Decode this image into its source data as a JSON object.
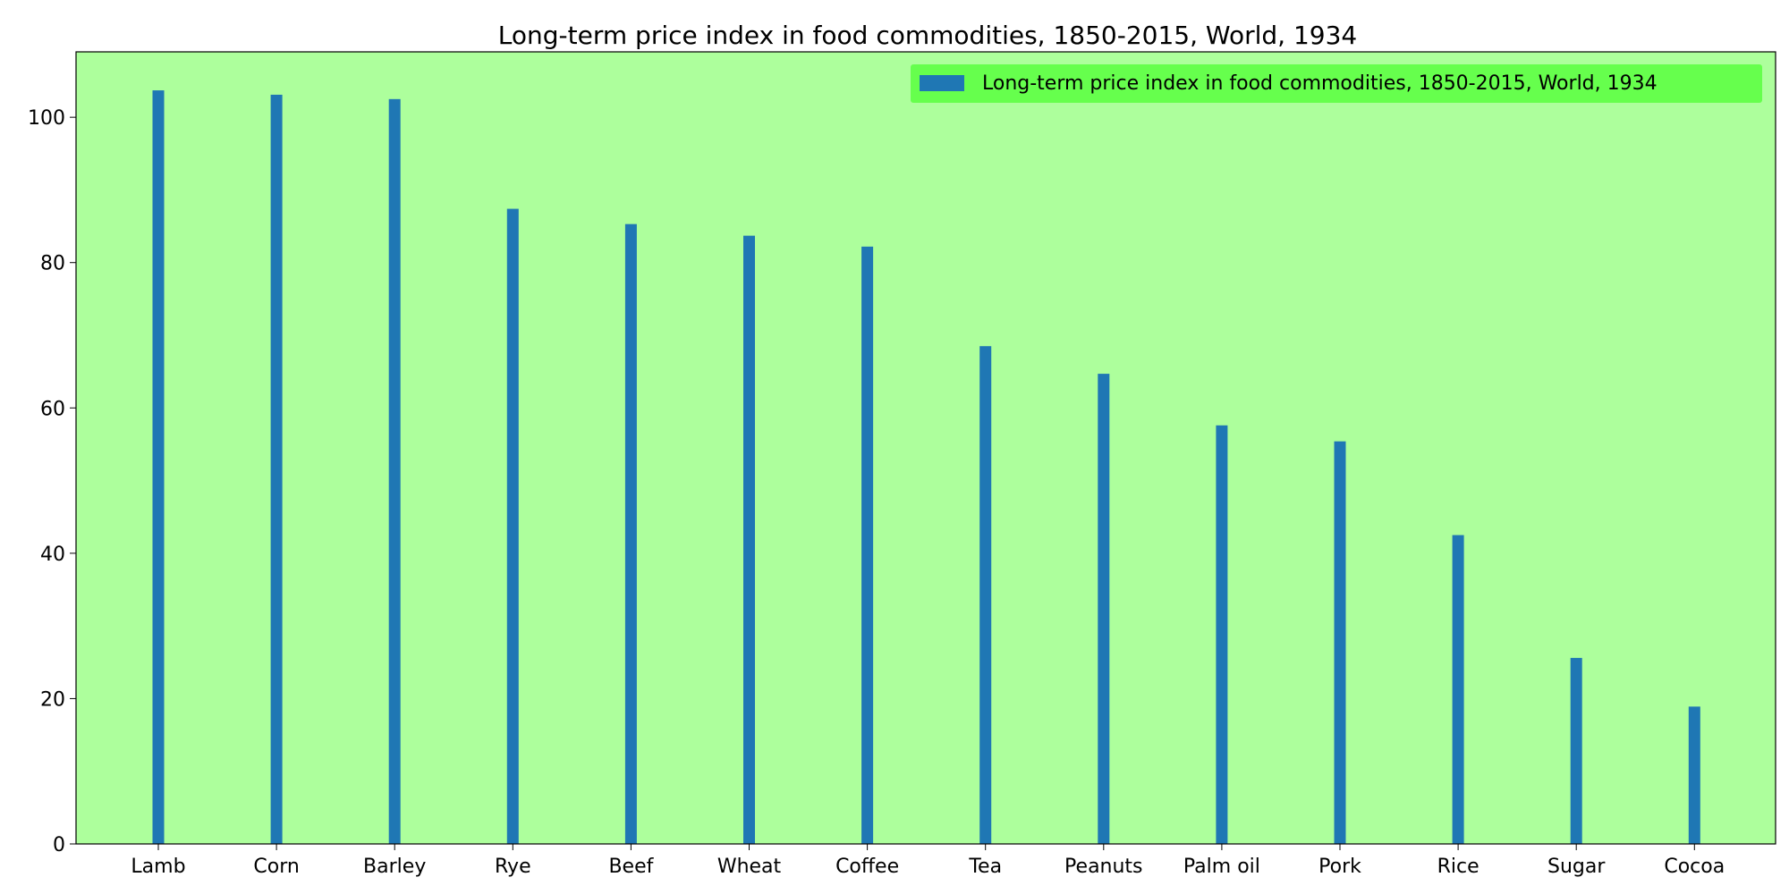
{
  "colors": {
    "plot_background": "#adff9c",
    "legend_background": "#66ff4d",
    "bar": "#1f77b4",
    "axis": "#000000",
    "page_background": "#ffffff"
  },
  "chart_data": {
    "type": "bar",
    "title": "Long-term price index in food commodities, 1850-2015, World, 1934",
    "xlabel": "",
    "ylabel": "",
    "categories": [
      "Lamb",
      "Corn",
      "Barley",
      "Rye",
      "Beef",
      "Wheat",
      "Coffee",
      "Tea",
      "Peanuts",
      "Palm oil",
      "Pork",
      "Rice",
      "Sugar",
      "Cocoa"
    ],
    "series": [
      {
        "name": "Long-term price index in food commodities, 1850-2015, World, 1934",
        "values": [
          103.7,
          103.1,
          102.5,
          87.4,
          85.3,
          83.7,
          82.2,
          68.5,
          64.7,
          57.6,
          55.4,
          42.5,
          25.6,
          18.9
        ]
      }
    ],
    "ylim": [
      0,
      109
    ],
    "yticks": [
      0,
      20,
      40,
      60,
      80,
      100
    ],
    "grid": false,
    "legend_position": "top-right"
  }
}
